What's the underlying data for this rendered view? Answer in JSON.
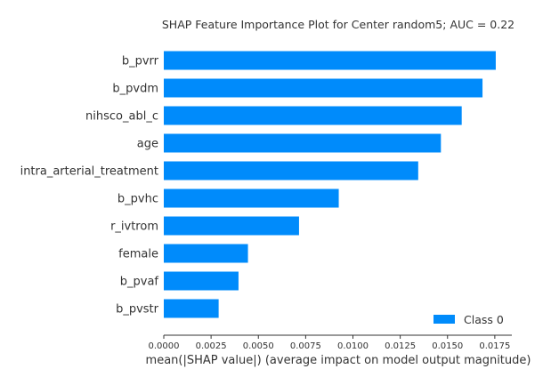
{
  "chart_data": {
    "type": "bar",
    "orientation": "horizontal",
    "title": "SHAP Feature Importance Plot for Center random5; AUC = 0.22",
    "xlabel": "mean(|SHAP value|) (average impact on model output magnitude)",
    "ylabel": "",
    "categories": [
      "b_pvrr",
      "b_pvdm",
      "nihsco_abl_c",
      "age",
      "intra_arterial_treatment",
      "b_pvhc",
      "r_ivtrom",
      "female",
      "b_pvaf",
      "b_pvstr"
    ],
    "series": [
      {
        "name": "Class 0",
        "color": "#008bfb",
        "values": [
          0.01755,
          0.01685,
          0.01575,
          0.01465,
          0.01345,
          0.00925,
          0.00715,
          0.00445,
          0.00395,
          0.0029
        ]
      }
    ],
    "xlim": [
      0,
      0.0184
    ],
    "xticks": [
      0.0,
      0.0025,
      0.005,
      0.0075,
      0.01,
      0.0125,
      0.015,
      0.0175
    ],
    "xtick_labels": [
      "0.0000",
      "0.0025",
      "0.0050",
      "0.0075",
      "0.0100",
      "0.0125",
      "0.0150",
      "0.0175"
    ],
    "grid": false,
    "legend": {
      "position": "bottom-right",
      "entries": [
        "Class 0"
      ]
    }
  }
}
